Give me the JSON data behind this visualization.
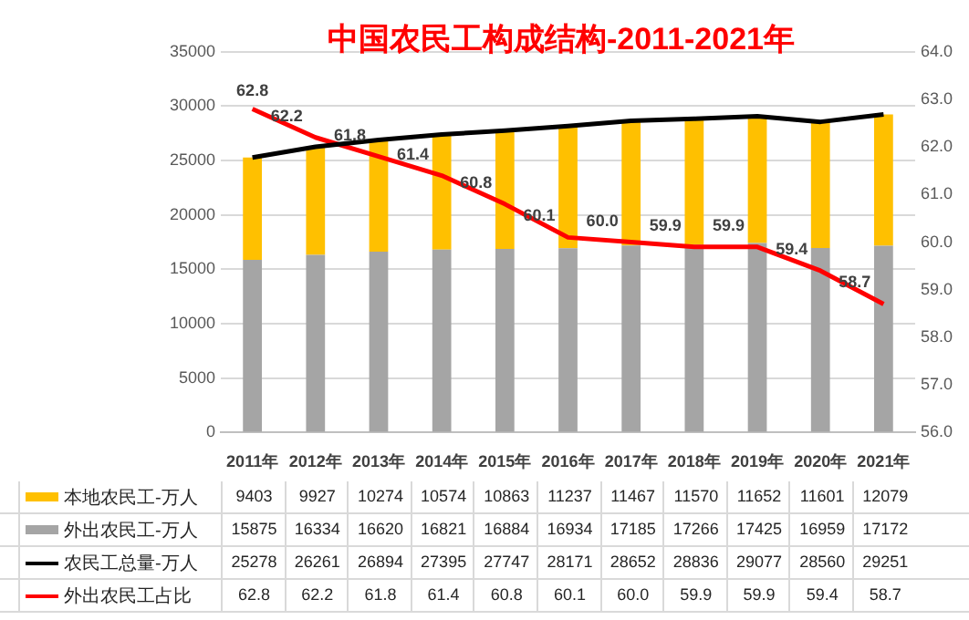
{
  "chart_data": {
    "type": "bar",
    "title": "中国农民工构成结构-2011-2021年",
    "categories": [
      "2011年",
      "2012年",
      "2013年",
      "2014年",
      "2015年",
      "2016年",
      "2017年",
      "2018年",
      "2019年",
      "2020年",
      "2021年"
    ],
    "stacked": true,
    "series": [
      {
        "name": "外出农民工-万人",
        "color": "#a5a5a5",
        "values": [
          15875,
          16334,
          16620,
          16821,
          16884,
          16934,
          17185,
          17266,
          17425,
          16959,
          17172
        ]
      },
      {
        "name": "本地农民工-万人",
        "color": "#ffc000",
        "values": [
          9403,
          9927,
          10274,
          10574,
          10863,
          11237,
          11467,
          11570,
          11652,
          11601,
          12079
        ]
      },
      {
        "name": "农民工总量-万人",
        "type": "line",
        "color": "#000000",
        "values": [
          25278,
          26261,
          26894,
          27395,
          27747,
          28171,
          28652,
          28836,
          29077,
          28560,
          29251
        ]
      },
      {
        "name": "外出农民工占比",
        "type": "line",
        "axis": "y2",
        "color": "#ff0000",
        "values": [
          62.8,
          62.2,
          61.8,
          61.4,
          60.8,
          60.1,
          60.0,
          59.9,
          59.9,
          59.4,
          58.7
        ],
        "value_labels": [
          "62.8",
          "62.2",
          "61.8",
          "61.4",
          "60.8",
          "60.1",
          "60.0",
          "59.9",
          "59.9",
          "59.4",
          "58.7"
        ]
      }
    ],
    "ylim": [
      0,
      35000
    ],
    "yticks": [
      0,
      5000,
      10000,
      15000,
      20000,
      25000,
      30000,
      35000
    ],
    "y2lim": [
      56,
      64
    ],
    "y2ticks": [
      {
        "value": 56,
        "label": "56.0"
      },
      {
        "value": 57,
        "label": "57.0"
      },
      {
        "value": 58,
        "label": "58.0"
      },
      {
        "value": 59,
        "label": "59.0"
      },
      {
        "value": 60,
        "label": "60.0"
      },
      {
        "value": 61,
        "label": "61.0"
      },
      {
        "value": 62,
        "label": "62.0"
      },
      {
        "value": 63,
        "label": "63.0"
      },
      {
        "value": 64,
        "label": "64.0"
      }
    ],
    "grid": "y",
    "legend": "bottom",
    "marker": "none",
    "line_style": "solid",
    "data_labels": true
  }
}
